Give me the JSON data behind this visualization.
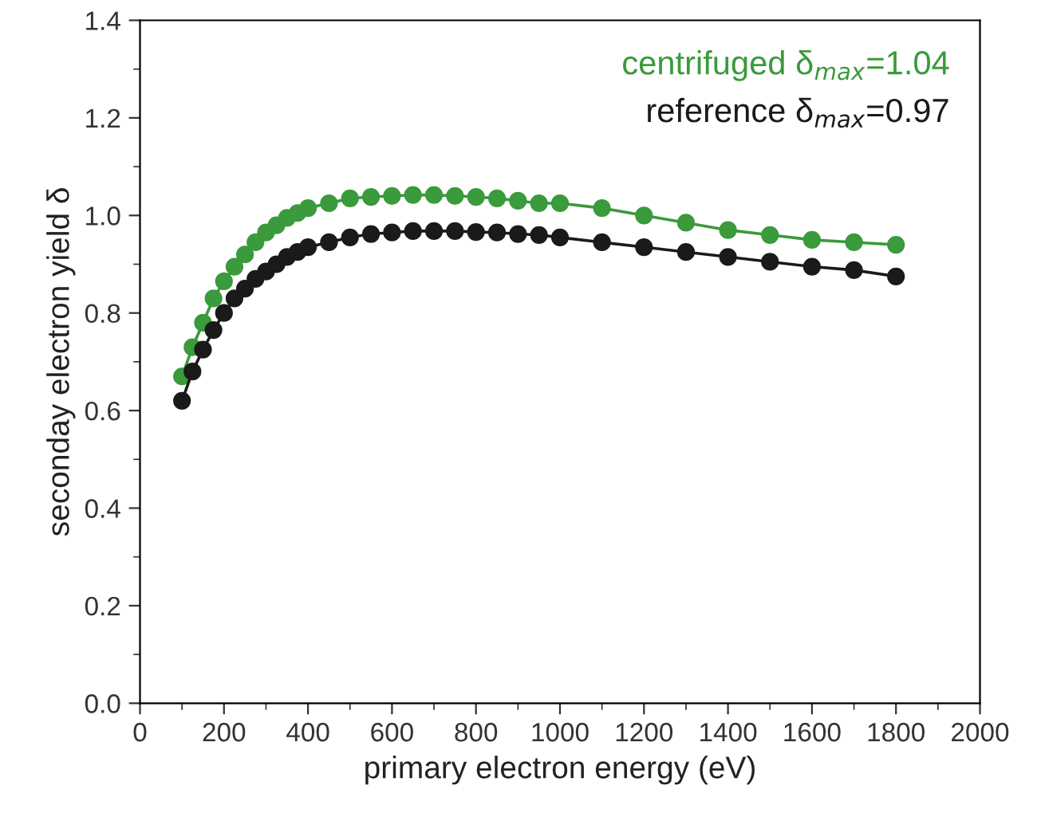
{
  "chart_data": {
    "type": "line",
    "xlabel": "primary electron energy (eV)",
    "ylabel": "seconday electron yield δ",
    "x": [
      100,
      125,
      150,
      175,
      200,
      225,
      250,
      275,
      300,
      325,
      350,
      375,
      400,
      450,
      500,
      550,
      600,
      650,
      700,
      750,
      800,
      850,
      900,
      950,
      1000,
      1100,
      1200,
      1300,
      1400,
      1500,
      1600,
      1700,
      1800
    ],
    "series": [
      {
        "name": "centrifuged δ$_{max}$=1.04",
        "color": "#3a9a3c",
        "values": [
          0.67,
          0.73,
          0.78,
          0.83,
          0.865,
          0.895,
          0.92,
          0.945,
          0.965,
          0.98,
          0.995,
          1.005,
          1.015,
          1.025,
          1.035,
          1.038,
          1.04,
          1.042,
          1.042,
          1.04,
          1.038,
          1.035,
          1.03,
          1.025,
          1.025,
          1.015,
          1.0,
          0.985,
          0.97,
          0.96,
          0.95,
          0.945,
          0.94
        ]
      },
      {
        "name": "reference δ$_{max}$=0.97",
        "color": "#1a1a1a",
        "values": [
          0.62,
          0.68,
          0.725,
          0.765,
          0.8,
          0.83,
          0.85,
          0.87,
          0.885,
          0.9,
          0.915,
          0.925,
          0.935,
          0.945,
          0.955,
          0.962,
          0.965,
          0.968,
          0.968,
          0.968,
          0.966,
          0.965,
          0.962,
          0.96,
          0.955,
          0.945,
          0.935,
          0.925,
          0.915,
          0.905,
          0.895,
          0.888,
          0.875
        ]
      }
    ],
    "xlim": [
      0,
      2000
    ],
    "xticks": [
      0,
      200,
      400,
      600,
      800,
      1000,
      1200,
      1400,
      1600,
      1800,
      2000
    ],
    "ylim": [
      0.0,
      1.4
    ],
    "yticks": [
      {
        "value": 0.0,
        "label": "0.0"
      },
      {
        "value": 0.2,
        "label": "0.2"
      },
      {
        "value": 0.4,
        "label": "0.4"
      },
      {
        "value": 0.6,
        "label": "0.6"
      },
      {
        "value": 0.8,
        "label": "0.8"
      },
      {
        "value": 1.0,
        "label": "1.0"
      },
      {
        "value": 1.2,
        "label": "1.2"
      },
      {
        "value": 1.4,
        "label": "1.4"
      }
    ],
    "grid": false,
    "legend": "top right",
    "marker": "circle",
    "line_style": "solid"
  }
}
